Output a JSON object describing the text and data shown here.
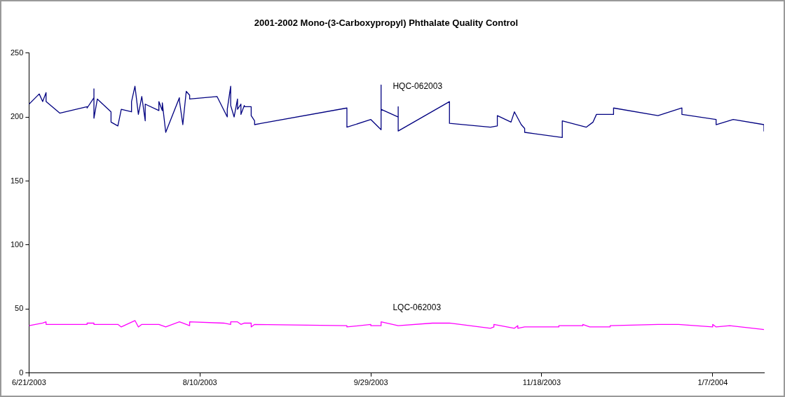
{
  "chart_data": {
    "type": "line",
    "title": "2001-2002 Mono-(3-Carboxypropyl) Phthalate Quality Control",
    "xlim": [
      "2003-06-21",
      "2004-01-22"
    ],
    "xticks": [
      {
        "value": "2003-06-21",
        "label": "6/21/2003"
      },
      {
        "value": "2003-08-10",
        "label": "8/10/2003"
      },
      {
        "value": "2003-09-29",
        "label": "9/29/2003"
      },
      {
        "value": "2003-11-18",
        "label": "11/18/2003"
      },
      {
        "value": "2004-01-07",
        "label": "1/7/2004"
      }
    ],
    "ylim": [
      0,
      250
    ],
    "yticks": [
      0,
      50,
      100,
      150,
      200,
      250
    ],
    "grid": false,
    "legend": false,
    "marker": "none",
    "line_style": "solid",
    "series": [
      {
        "name": "HQC-062003",
        "color": "#000080",
        "x": [
          "2003-06-21",
          "2003-06-24",
          "2003-06-25",
          "2003-06-26",
          "2003-06-26",
          "2003-06-30",
          "2003-07-08",
          "2003-07-08",
          "2003-07-10",
          "2003-07-10",
          "2003-07-10",
          "2003-07-11",
          "2003-07-15",
          "2003-07-15",
          "2003-07-17",
          "2003-07-18",
          "2003-07-21",
          "2003-07-21",
          "2003-07-22",
          "2003-07-23",
          "2003-07-24",
          "2003-07-25",
          "2003-07-25",
          "2003-07-29",
          "2003-07-29",
          "2003-07-30",
          "2003-07-30",
          "2003-07-31",
          "2003-08-04",
          "2003-08-04",
          "2003-08-05",
          "2003-08-06",
          "2003-08-07",
          "2003-08-07",
          "2003-08-15",
          "2003-08-18",
          "2003-08-18",
          "2003-08-19",
          "2003-08-19",
          "2003-08-20",
          "2003-08-21",
          "2003-08-21",
          "2003-08-22",
          "2003-08-22",
          "2003-08-23",
          "2003-08-23",
          "2003-08-25",
          "2003-08-25",
          "2003-08-26",
          "2003-08-26",
          "2003-08-28",
          "2003-09-22",
          "2003-09-22",
          "2003-09-29",
          "2003-10-02",
          "2003-10-02",
          "2003-10-02",
          "2003-10-07",
          "2003-10-07",
          "2003-10-07",
          "2003-10-22",
          "2003-10-22",
          "2003-11-03",
          "2003-11-05",
          "2003-11-05",
          "2003-11-09",
          "2003-11-10",
          "2003-11-12",
          "2003-11-13",
          "2003-11-13",
          "2003-11-24",
          "2003-11-24",
          "2003-12-01",
          "2003-12-03",
          "2003-12-04",
          "2003-12-09",
          "2003-12-09",
          "2003-12-22",
          "2003-12-29",
          "2003-12-29",
          "2004-01-08",
          "2004-01-08",
          "2004-01-13",
          "2004-01-22",
          "2004-01-22"
        ],
        "values": [
          210,
          218,
          212,
          219,
          212,
          203,
          208,
          207,
          215,
          222,
          199,
          214,
          204,
          196,
          193,
          206,
          204,
          212,
          224,
          202,
          216,
          197,
          210,
          205,
          212,
          205,
          211,
          188,
          215,
          213,
          194,
          220,
          217,
          214,
          216,
          200,
          206,
          224,
          209,
          200,
          214,
          206,
          210,
          202,
          209,
          208,
          208,
          201,
          197,
          194,
          195,
          207,
          192,
          198,
          190,
          225,
          206,
          200,
          208,
          189,
          212,
          195,
          192,
          193,
          201,
          196,
          204,
          194,
          191,
          188,
          184,
          197,
          192,
          196,
          202,
          202,
          207,
          201,
          207,
          202,
          198,
          194,
          198,
          194,
          189
        ]
      },
      {
        "name": "LQC-062003",
        "color": "#ff00ff",
        "x": [
          "2003-06-21",
          "2003-06-25",
          "2003-06-26",
          "2003-06-26",
          "2003-06-30",
          "2003-07-08",
          "2003-07-08",
          "2003-07-10",
          "2003-07-10",
          "2003-07-17",
          "2003-07-18",
          "2003-07-22",
          "2003-07-23",
          "2003-07-24",
          "2003-07-25",
          "2003-07-29",
          "2003-07-31",
          "2003-08-04",
          "2003-08-05",
          "2003-08-07",
          "2003-08-07",
          "2003-08-17",
          "2003-08-19",
          "2003-08-19",
          "2003-08-21",
          "2003-08-22",
          "2003-08-23",
          "2003-08-25",
          "2003-08-25",
          "2003-08-26",
          "2003-09-22",
          "2003-09-22",
          "2003-09-29",
          "2003-09-29",
          "2003-10-02",
          "2003-10-02",
          "2003-10-07",
          "2003-10-07",
          "2003-10-17",
          "2003-10-22",
          "2003-10-22",
          "2003-11-03",
          "2003-11-04",
          "2003-11-04",
          "2003-11-10",
          "2003-11-11",
          "2003-11-11",
          "2003-11-13",
          "2003-11-23",
          "2003-11-23",
          "2003-11-30",
          "2003-11-30",
          "2003-12-02",
          "2003-12-03",
          "2003-12-08",
          "2003-12-08",
          "2003-12-22",
          "2003-12-28",
          "2004-01-07",
          "2004-01-07",
          "2004-01-08",
          "2004-01-12",
          "2004-01-22"
        ],
        "values": [
          37,
          39,
          40,
          38,
          38,
          38,
          39,
          39,
          38,
          38,
          36,
          41,
          36,
          38,
          38,
          38,
          36,
          40,
          39,
          37,
          40,
          39,
          38,
          40,
          40,
          38,
          39,
          39,
          36,
          38,
          37,
          36,
          38,
          37,
          37,
          40,
          37,
          37,
          39,
          39,
          39,
          35,
          36,
          38,
          35,
          37,
          35,
          36,
          36,
          37,
          37,
          38,
          36,
          36,
          36,
          37,
          38,
          38,
          36,
          38,
          36,
          37,
          34
        ]
      }
    ]
  }
}
